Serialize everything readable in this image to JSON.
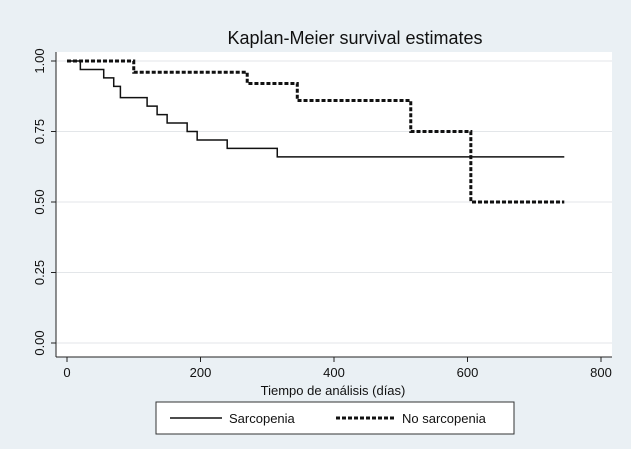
{
  "chart_data": {
    "type": "line",
    "title": "Kaplan-Meier survival estimates",
    "xlabel": "Tiempo de análisis (días)",
    "ylabel": "",
    "xlim": [
      0,
      800
    ],
    "ylim": [
      0,
      1
    ],
    "x_ticks": [
      "0",
      "200",
      "400",
      "600",
      "800"
    ],
    "y_ticks": [
      "0.00",
      "0.25",
      "0.50",
      "0.75",
      "1.00"
    ],
    "grid": true,
    "step": true,
    "legend_position": "bottom",
    "series": [
      {
        "name": "Sarcopenia",
        "style": "solid",
        "points": [
          [
            0,
            1.0
          ],
          [
            20,
            0.97
          ],
          [
            55,
            0.94
          ],
          [
            70,
            0.91
          ],
          [
            80,
            0.87
          ],
          [
            120,
            0.84
          ],
          [
            135,
            0.81
          ],
          [
            150,
            0.78
          ],
          [
            180,
            0.75
          ],
          [
            195,
            0.72
          ],
          [
            240,
            0.69
          ],
          [
            315,
            0.66
          ],
          [
            745,
            0.66
          ]
        ]
      },
      {
        "name": "No sarcopenia",
        "style": "dashed",
        "points": [
          [
            0,
            1.0
          ],
          [
            100,
            0.96
          ],
          [
            270,
            0.92
          ],
          [
            345,
            0.86
          ],
          [
            515,
            0.75
          ],
          [
            605,
            0.5
          ],
          [
            745,
            0.5
          ]
        ]
      }
    ]
  }
}
